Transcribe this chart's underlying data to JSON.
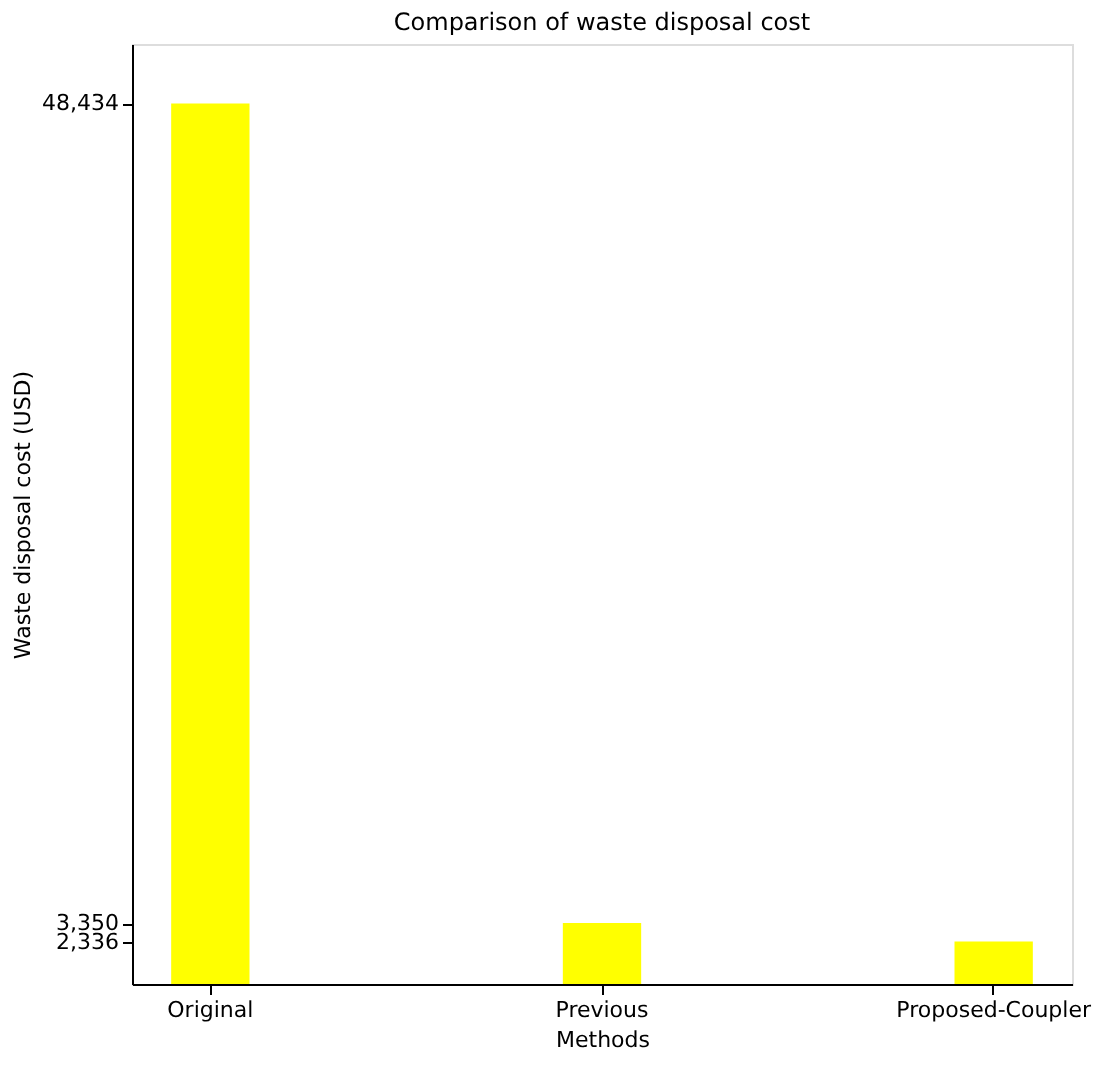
{
  "chart_data": {
    "type": "bar",
    "title": "Comparison of waste disposal cost",
    "xlabel": "Methods",
    "ylabel": "Waste disposal cost (USD)",
    "categories": [
      "Original",
      "Previous",
      "Proposed-Coupler"
    ],
    "values": [
      48434,
      3350,
      2336
    ],
    "color": "#ffff00",
    "ylim": [
      0,
      51700
    ],
    "yticks": [
      {
        "value": 2336,
        "label": "2,336"
      },
      {
        "value": 3350,
        "label": "3,350"
      },
      {
        "value": 48434,
        "label": "48,434"
      }
    ],
    "grid": false
  }
}
